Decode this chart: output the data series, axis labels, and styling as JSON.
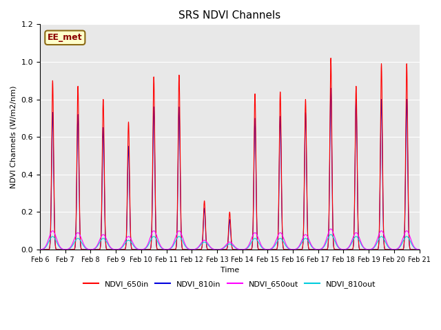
{
  "title": "SRS NDVI Channels",
  "ylabel": "NDVI Channels (W/m2/nm)",
  "xlabel": "Time",
  "ylim": [
    0,
    1.2
  ],
  "annotation": "EE_met",
  "legend_labels": [
    "NDVI_650in",
    "NDVI_810in",
    "NDVI_650out",
    "NDVI_810out"
  ],
  "line_colors": {
    "NDVI_650in": "#ff0000",
    "NDVI_810in": "#0000dd",
    "NDVI_650out": "#ff00ff",
    "NDVI_810out": "#00ccdd"
  },
  "axes_facecolor": "#e8e8e8",
  "tick_labels": [
    "Feb 6",
    "Feb 7",
    "Feb 8",
    "Feb 9",
    "Feb 10",
    "Feb 11",
    "Feb 12",
    "Feb 13",
    "Feb 14",
    "Feb 15",
    "Feb 16",
    "Feb 17",
    "Feb 18",
    "Feb 19",
    "Feb 20",
    "Feb 21"
  ],
  "yticks": [
    0.0,
    0.2,
    0.4,
    0.6,
    0.8,
    1.0,
    1.2
  ],
  "peak_650in": [
    0.9,
    0.87,
    0.8,
    0.68,
    0.92,
    0.93,
    0.26,
    0.2,
    0.83,
    0.84,
    0.8,
    1.02,
    0.87,
    0.99,
    0.99
  ],
  "peak_810in": [
    0.73,
    0.72,
    0.65,
    0.55,
    0.76,
    0.76,
    0.22,
    0.16,
    0.7,
    0.71,
    0.73,
    0.86,
    0.8,
    0.8,
    0.8
  ],
  "peak_650out": [
    0.1,
    0.09,
    0.08,
    0.07,
    0.1,
    0.1,
    0.05,
    0.04,
    0.09,
    0.09,
    0.08,
    0.11,
    0.09,
    0.1,
    0.1
  ],
  "peak_810out": [
    0.07,
    0.06,
    0.06,
    0.05,
    0.07,
    0.07,
    0.04,
    0.03,
    0.06,
    0.06,
    0.06,
    0.08,
    0.07,
    0.07,
    0.07
  ]
}
